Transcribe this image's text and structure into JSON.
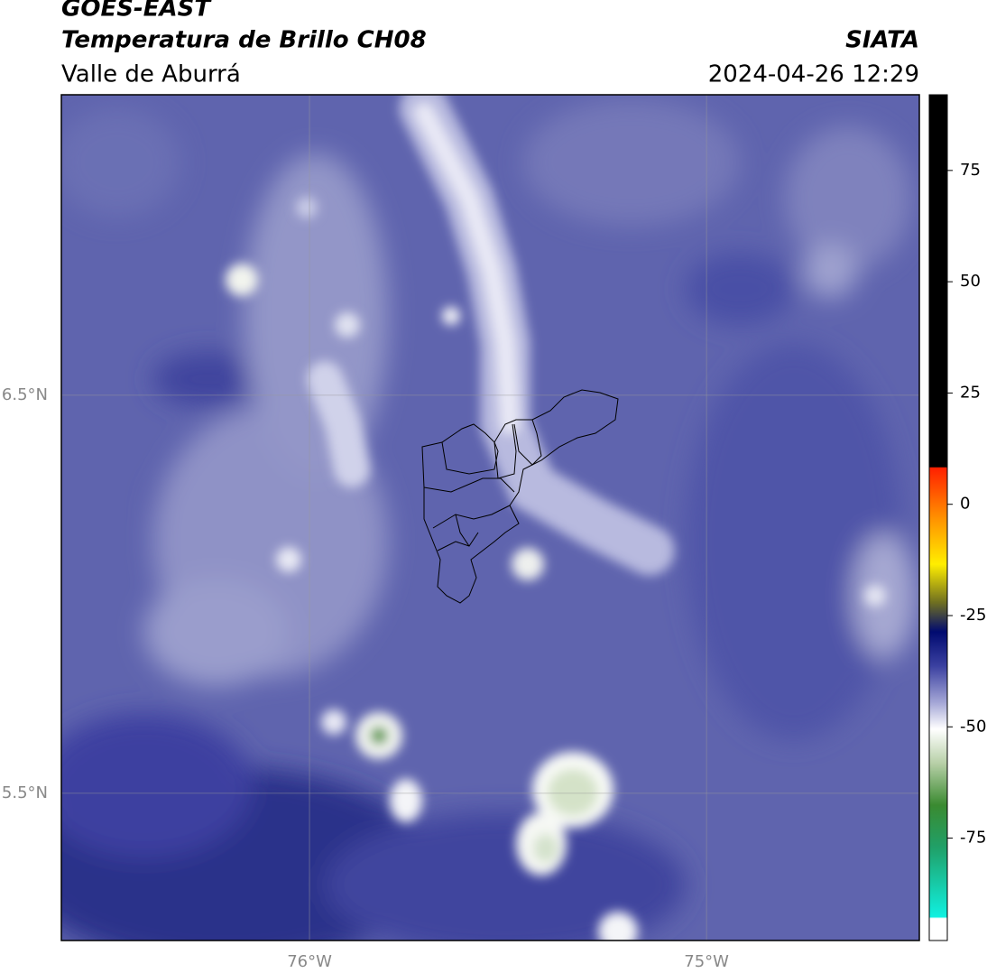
{
  "header": {
    "title": "GOES-EAST",
    "subtitle": "Temperatura de Brillo CH08",
    "region": "Valle de Aburrá",
    "source": "SIATA",
    "datetime": "2024-04-26 12:29"
  },
  "map": {
    "xlim": [
      -76.625,
      -74.464
    ],
    "ylim": [
      5.13,
      7.255
    ],
    "xticks": [
      {
        "value": -76,
        "label": "76°W"
      },
      {
        "value": -75,
        "label": "75°W"
      }
    ],
    "yticks": [
      {
        "value": 6.5,
        "label": "6.5°N"
      },
      {
        "value": 5.5,
        "label": "5.5°N"
      }
    ],
    "grid": true
  },
  "colorbar": {
    "lim": [
      -98,
      92
    ],
    "ticks": [
      75,
      50,
      25,
      0,
      -25,
      -50,
      -75
    ]
  }
}
